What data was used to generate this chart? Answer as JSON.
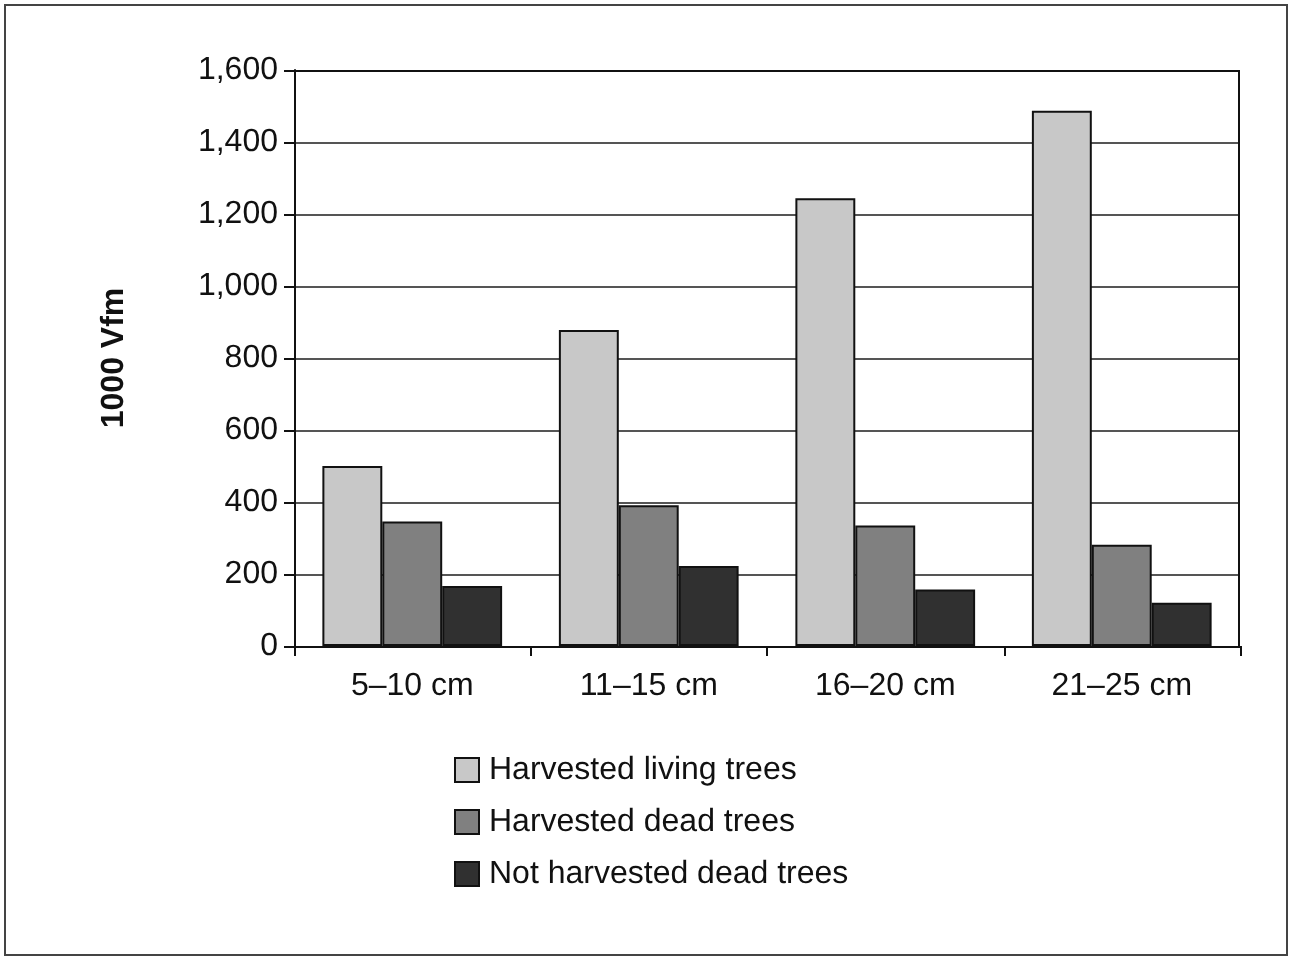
{
  "chart_data": {
    "type": "bar",
    "ylabel": "1000 Vfm",
    "categories": [
      "5–10 cm",
      "11–15 cm",
      "16–20 cm",
      "21–25 cm"
    ],
    "series": [
      {
        "name": "Harvested living trees",
        "color": "#c8c8c8",
        "values": [
          500,
          878,
          1244,
          1487
        ]
      },
      {
        "name": "Harvested dead trees",
        "color": "#808080",
        "values": [
          346,
          391,
          335,
          281
        ]
      },
      {
        "name": "Not harvested dead trees",
        "color": "#303030",
        "values": [
          167,
          222,
          157,
          120
        ]
      }
    ],
    "ylim": [
      0,
      1600
    ],
    "yticks": [
      0,
      {
        "value": 200,
        "label": "200"
      },
      {
        "value": 400,
        "label": "400"
      },
      {
        "value": 600,
        "label": "600"
      },
      {
        "value": 800,
        "label": "800"
      },
      {
        "value": 1000,
        "label": "1,000"
      },
      {
        "value": 1200,
        "label": "1,200"
      },
      {
        "value": 1400,
        "label": "1,400"
      },
      {
        "value": 1600,
        "label": "1,600"
      }
    ],
    "grid": "y",
    "legend": "bottom"
  }
}
